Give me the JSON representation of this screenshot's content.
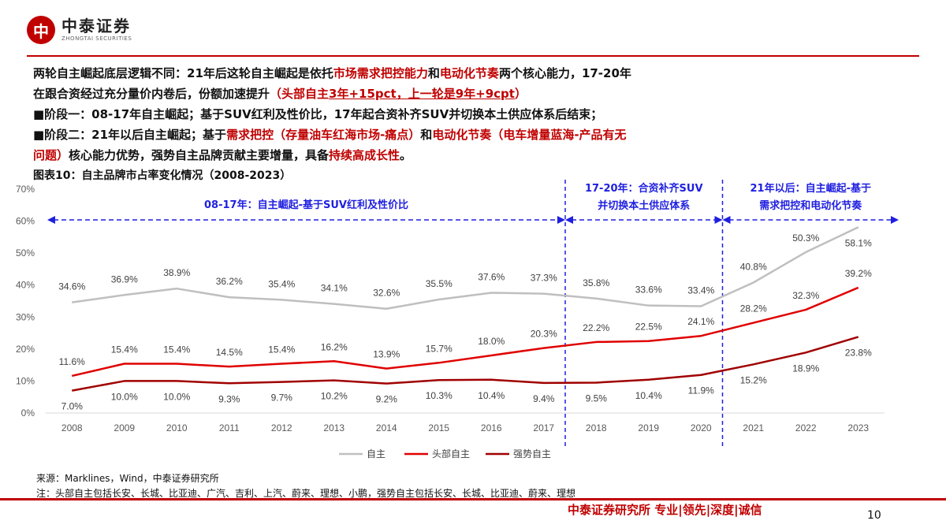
{
  "header": {
    "logo_text": "中泰证券",
    "logo_sub": "ZHONGTAI SECURITIES",
    "logo_mark": "中"
  },
  "body": {
    "line1_a": "两轮自主崛起底层逻辑不同：21年后这轮自主崛起是依托",
    "line1_b": "市场需求把控能力",
    "line1_c": "和",
    "line1_d": "电动化节奏",
    "line1_e": "两个核心能力，17-20年",
    "line2_a": "在跟合资经过充分量价内卷后，份额加速提升",
    "line2_b": "（头部自主",
    "line2_c": "3年+15pct，上一轮是9年+9cpt",
    "line2_d": "）",
    "stage1": "■阶段一：08-17年自主崛起；基于SUV红利及性价比，17年起合资补齐SUV并切换本土供应体系后结束；",
    "stage2_a": "■阶段二：21年以后自主崛起；基于",
    "stage2_b": "需求把控（存量油车红海市场-痛点）",
    "stage2_c": "和",
    "stage2_d": "电动化节奏（电车增量蓝海-产品有无",
    "stage2_e": "问题）",
    "stage2_f": "核心能力优势，强势自主品牌贡献主要增量，具备",
    "stage2_g": "持续高成长性",
    "stage2_h": "。"
  },
  "chart_title": "图表10：自主品牌市占率变化情况（2008-2023）",
  "chart_data": {
    "type": "line",
    "categories": [
      "2008",
      "2009",
      "2010",
      "2011",
      "2012",
      "2013",
      "2014",
      "2015",
      "2016",
      "2017",
      "2018",
      "2019",
      "2020",
      "2021",
      "2022",
      "2023"
    ],
    "series": [
      {
        "name": "自主",
        "color": "#bfbfbf",
        "values": [
          34.6,
          36.9,
          38.9,
          36.2,
          35.4,
          34.1,
          32.6,
          35.5,
          37.6,
          37.3,
          35.8,
          33.6,
          33.4,
          40.8,
          50.3,
          58.1
        ],
        "labels": [
          "34.6%",
          "36.9%",
          "38.9%",
          "36.2%",
          "35.4%",
          "34.1%",
          "32.6%",
          "35.5%",
          "37.6%",
          "37.3%",
          "35.8%",
          "33.6%",
          "33.4%",
          "40.8%",
          "50.3%",
          "58.1%"
        ]
      },
      {
        "name": "头部自主",
        "color": "#e00000",
        "values": [
          11.6,
          15.4,
          15.4,
          14.5,
          15.4,
          16.2,
          13.9,
          15.7,
          18.0,
          20.3,
          22.2,
          22.5,
          24.1,
          28.2,
          32.3,
          39.2
        ],
        "labels": [
          "11.6%",
          "15.4%",
          "15.4%",
          "14.5%",
          "15.4%",
          "16.2%",
          "13.9%",
          "15.7%",
          "18.0%",
          "20.3%",
          "22.2%",
          "22.5%",
          "24.1%",
          "28.2%",
          "32.3%",
          "39.2%"
        ]
      },
      {
        "name": "强势自主",
        "color": "#a00000",
        "values": [
          7.0,
          10.0,
          10.0,
          9.3,
          9.7,
          10.2,
          9.2,
          10.3,
          10.4,
          9.4,
          9.5,
          10.4,
          11.9,
          15.2,
          18.9,
          23.8
        ],
        "labels": [
          "7.0%",
          "10.0%",
          "10.0%",
          "9.3%",
          "9.7%",
          "10.2%",
          "9.2%",
          "10.3%",
          "10.4%",
          "9.4%",
          "9.5%",
          "10.4%",
          "11.9%",
          "15.2%",
          "18.9%",
          "23.8%"
        ]
      }
    ],
    "ylim": [
      0,
      70
    ],
    "yticks": [
      "0%",
      "10%",
      "20%",
      "30%",
      "40%",
      "50%",
      "60%",
      "70%"
    ],
    "legend_position": "bottom",
    "annotations": {
      "phase1": "08-17年：自主崛起-基于SUV红利及性价比",
      "phase2_l1": "17-20年：合资补齐SUV",
      "phase2_l2": "并切换本土供应体系",
      "phase3_l1": "21年以后：自主崛起-基于",
      "phase3_l2": "需求把控和电动化节奏"
    }
  },
  "source": {
    "line1": "来源：Marklines，Wind，中泰证券研究所",
    "line2": "注：头部自主包括长安、长城、比亚迪、广汽、吉利、上汽、蔚来、理想、小鹏，强势自主包括长安、长城、比亚迪、蔚来、理想"
  },
  "footer": {
    "brand": "中泰证券研究所 专业|领先|深度|诚信",
    "page": "10"
  }
}
